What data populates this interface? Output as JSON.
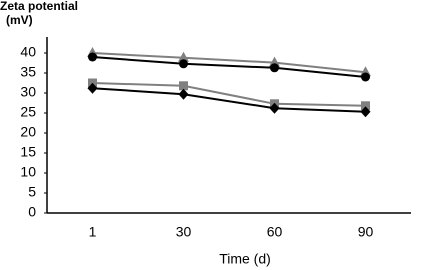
{
  "chart_data": {
    "type": "line",
    "y_label": [
      "Zeta potential",
      "(mV)"
    ],
    "x_label": "Time (d)",
    "categories": [
      "1",
      "30",
      "60",
      "90"
    ],
    "series": [
      {
        "color": "#808080",
        "marker": "triangle",
        "values": [
          40,
          38.8,
          37.6,
          35.2
        ]
      },
      {
        "color": "#000000",
        "marker": "circle",
        "values": [
          39,
          37.3,
          36.3,
          34
        ]
      },
      {
        "color": "#808080",
        "marker": "square",
        "values": [
          32.5,
          31.8,
          27.3,
          26.8
        ]
      },
      {
        "color": "#000000",
        "marker": "diamond",
        "values": [
          31.2,
          29.7,
          26.2,
          25.3
        ]
      }
    ],
    "ylim": [
      0,
      44
    ],
    "yticks": [
      0,
      5,
      10,
      15,
      20,
      25,
      30,
      35,
      40
    ],
    "grid": false
  }
}
